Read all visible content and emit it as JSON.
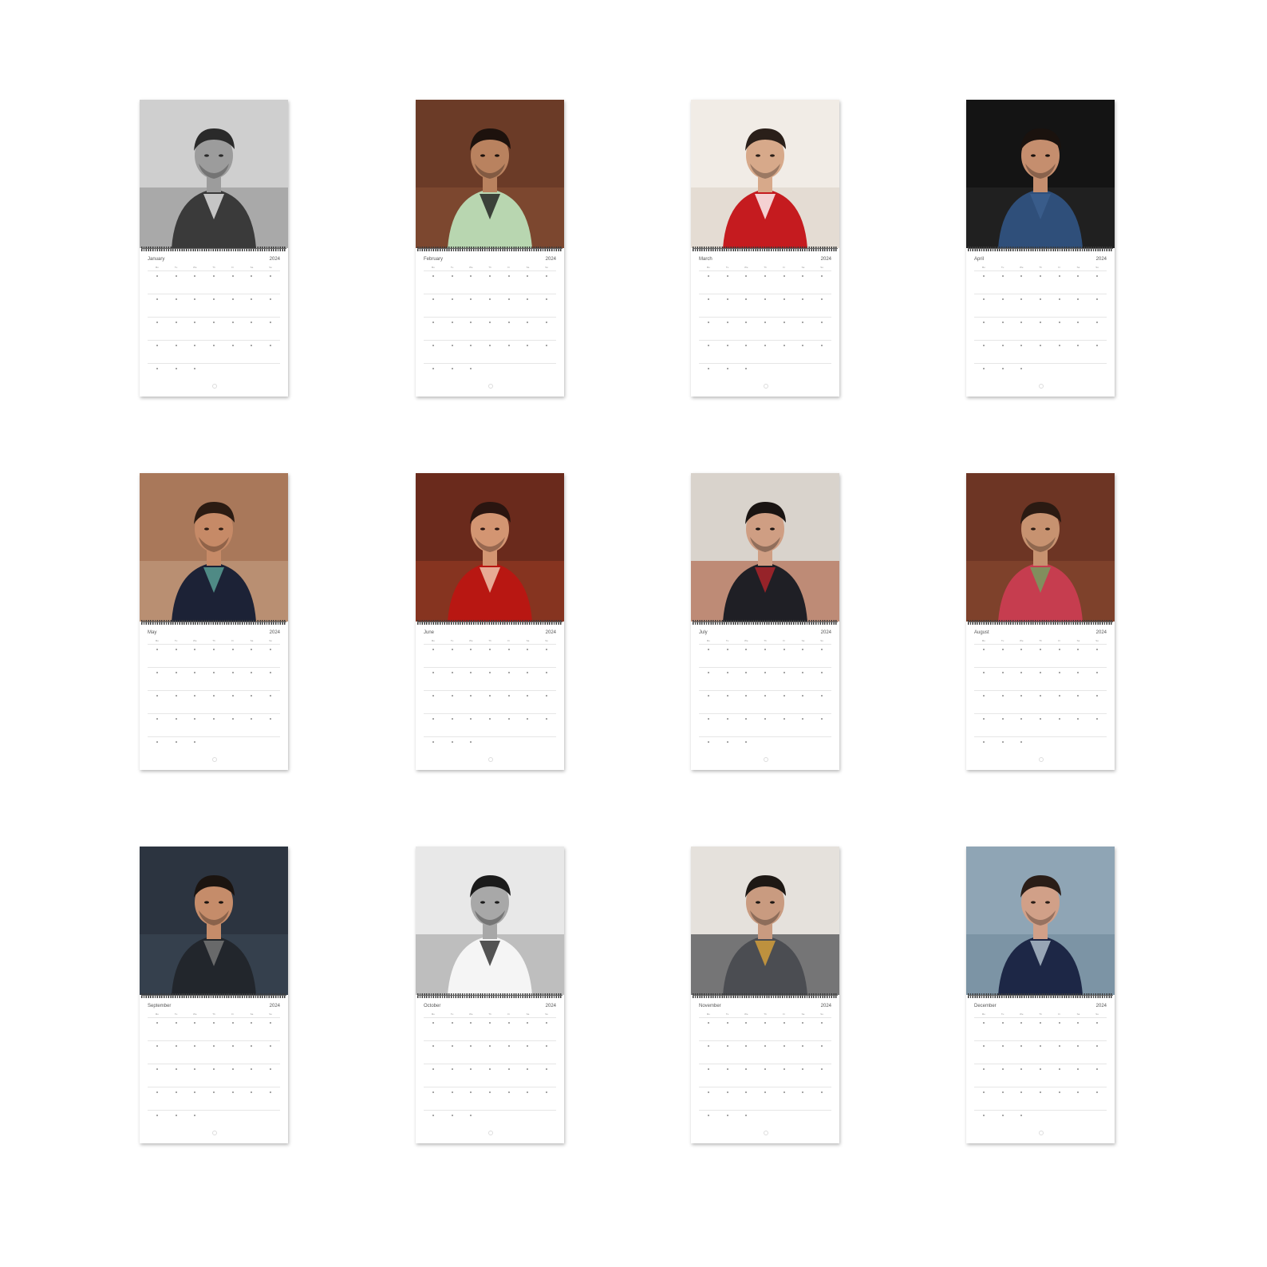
{
  "calendars": [
    {
      "month": "January",
      "year": "2024",
      "photo": {
        "bg": "#cfcfcf",
        "mid": "#8a8a8a",
        "skin": "#9c9c9c",
        "hair": "#2a2a2a",
        "outfit": "#3a3a3a",
        "accent": "#e8e8e8"
      }
    },
    {
      "month": "February",
      "year": "2024",
      "photo": {
        "bg": "#6b3b27",
        "mid": "#8a5236",
        "skin": "#b9825f",
        "hair": "#1d120d",
        "outfit": "#b8d6b0",
        "accent": "#1c1c1c"
      }
    },
    {
      "month": "March",
      "year": "2024",
      "photo": {
        "bg": "#f1ece6",
        "mid": "#d9cfc3",
        "skin": "#d7a98a",
        "hair": "#2a1f19",
        "outfit": "#c51b1f",
        "accent": "#ffffff"
      }
    },
    {
      "month": "April",
      "year": "2024",
      "photo": {
        "bg": "#141414",
        "mid": "#2a2a2a",
        "skin": "#c58e6e",
        "hair": "#1a120e",
        "outfit": "#2f4f7a",
        "accent": "#3c5f8f"
      }
    },
    {
      "month": "May",
      "year": "2024",
      "photo": {
        "bg": "#a9785a",
        "mid": "#c7a386",
        "skin": "#c68a67",
        "hair": "#2b1b12",
        "outfit": "#1c2236",
        "accent": "#5da59a"
      }
    },
    {
      "month": "June",
      "year": "2024",
      "photo": {
        "bg": "#6a2a1c",
        "mid": "#9c3c24",
        "skin": "#d39572",
        "hair": "#2a1510",
        "outfit": "#b81712",
        "accent": "#f2d0b6"
      }
    },
    {
      "month": "July",
      "year": "2024",
      "photo": {
        "bg": "#d9d3cc",
        "mid": "#a7512f",
        "skin": "#cf9e83",
        "hair": "#1a1412",
        "outfit": "#1f1f25",
        "accent": "#b4242a"
      }
    },
    {
      "month": "August",
      "year": "2024",
      "photo": {
        "bg": "#6d3524",
        "mid": "#8c4a31",
        "skin": "#c79270",
        "hair": "#2a1a12",
        "outfit": "#c63d4f",
        "accent": "#6fa360"
      }
    },
    {
      "month": "September",
      "year": "2024",
      "photo": {
        "bg": "#2c3440",
        "mid": "#3e4a57",
        "skin": "#c58c6a",
        "hair": "#1b1410",
        "outfit": "#22262c",
        "accent": "#7a7a7a"
      }
    },
    {
      "month": "October",
      "year": "2024",
      "photo": {
        "bg": "#e8e8e8",
        "mid": "#9b9b9b",
        "skin": "#a8a8a8",
        "hair": "#1b1b1b",
        "outfit": "#f5f5f5",
        "accent": "#2a2a2a"
      }
    },
    {
      "month": "November",
      "year": "2024",
      "photo": {
        "bg": "#e5e1dc",
        "mid": "#1a1d22",
        "skin": "#c99b80",
        "hair": "#1e1814",
        "outfit": "#4b4d52",
        "accent": "#d9a23a"
      }
    },
    {
      "month": "December",
      "year": "2024",
      "photo": {
        "bg": "#8fa5b5",
        "mid": "#6e8798",
        "skin": "#d1a088",
        "hair": "#2a1d17",
        "outfit": "#1d2746",
        "accent": "#b7c6d1"
      }
    }
  ],
  "weekday_labels": [
    "Mo",
    "Tu",
    "We",
    "Th",
    "Fr",
    "Sa",
    "Su"
  ]
}
